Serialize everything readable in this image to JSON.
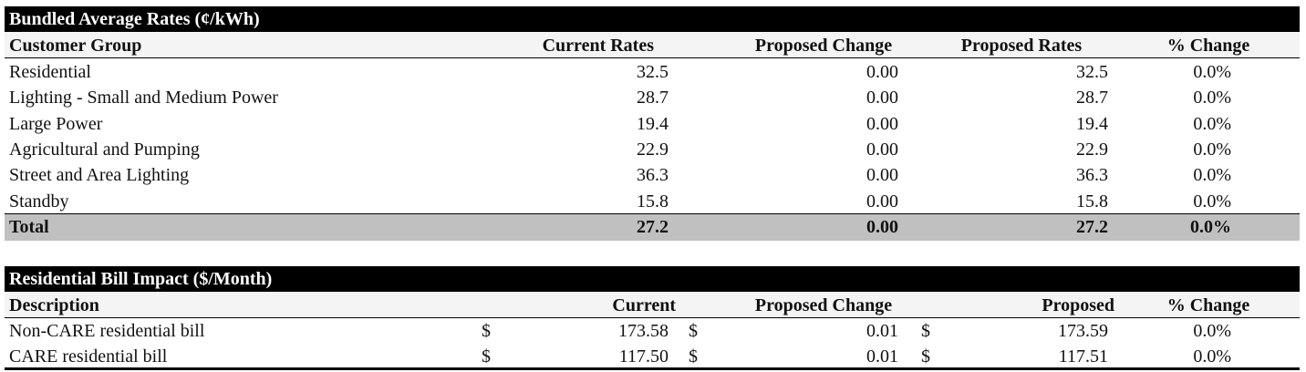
{
  "table1": {
    "title": "Bundled Average Rates (¢/kWh)",
    "columns": [
      "Customer Group",
      "Current Rates",
      "Proposed Change",
      "Proposed Rates",
      "% Change"
    ],
    "rows": [
      [
        "Residential",
        "32.5",
        "0.00",
        "32.5",
        "0.0%"
      ],
      [
        "Lighting - Small and Medium Power",
        "28.7",
        "0.00",
        "28.7",
        "0.0%"
      ],
      [
        "Large Power",
        "19.4",
        "0.00",
        "19.4",
        "0.0%"
      ],
      [
        "Agricultural and Pumping",
        "22.9",
        "0.00",
        "22.9",
        "0.0%"
      ],
      [
        "Street and Area Lighting",
        "36.3",
        "0.00",
        "36.3",
        "0.0%"
      ],
      [
        "Standby",
        "15.8",
        "0.00",
        "15.8",
        "0.0%"
      ]
    ],
    "total": [
      "Total",
      "27.2",
      "0.00",
      "27.2",
      "0.0%"
    ]
  },
  "table2": {
    "title": "Residential Bill Impact ($/Month)",
    "columns": [
      "Description",
      "Current",
      "Proposed Change",
      "Proposed",
      "% Change"
    ],
    "rows": [
      [
        "Non-CARE residential bill",
        "$",
        "173.58",
        "$",
        "0.01",
        "$",
        "173.59",
        "0.0%"
      ],
      [
        "CARE residential bill",
        "$",
        "117.50",
        "$",
        "0.01",
        "$",
        "117.51",
        "0.0%"
      ]
    ]
  }
}
